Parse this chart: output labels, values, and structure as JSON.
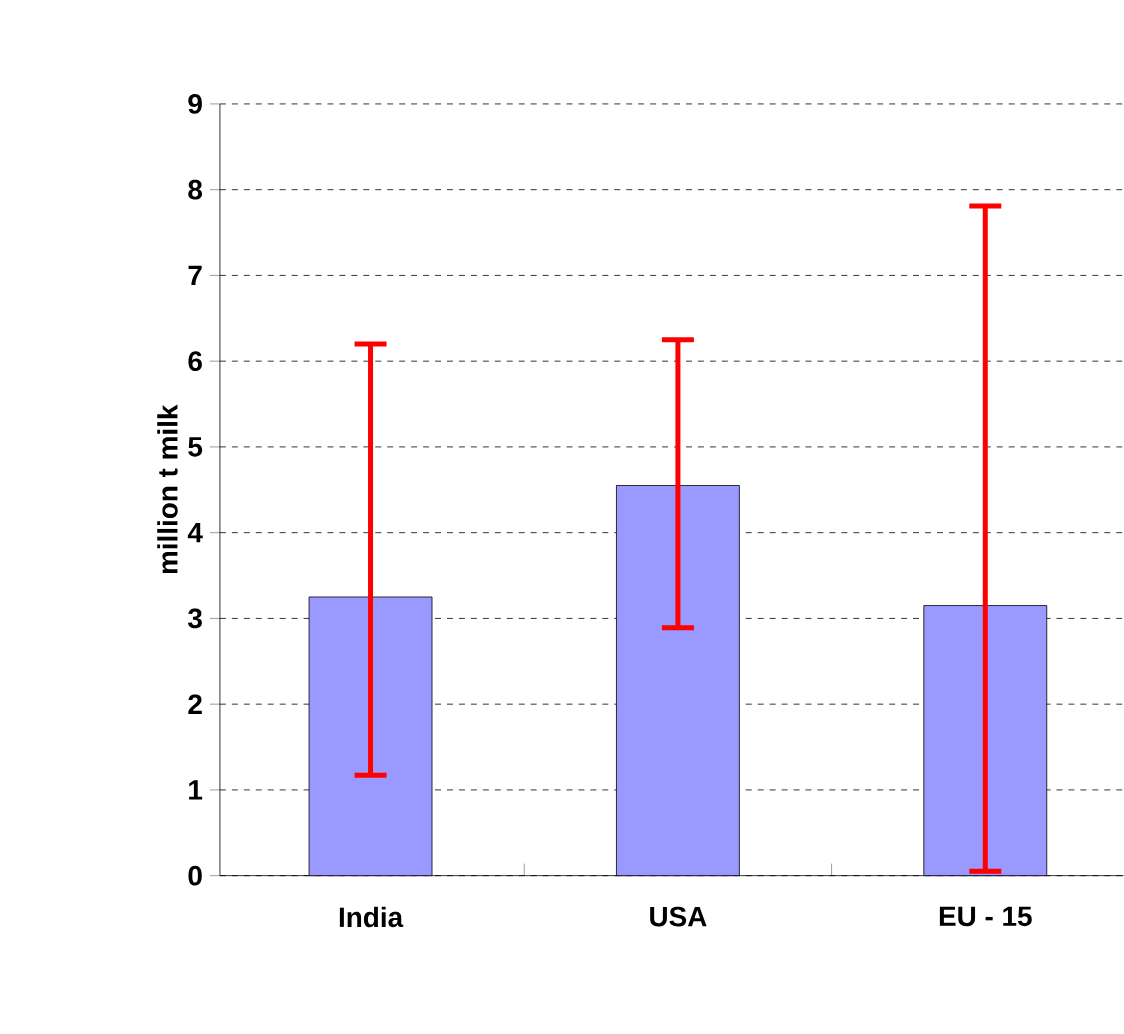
{
  "chart_data": {
    "type": "bar",
    "ylabel": "million t milk",
    "categories": [
      "India",
      "USA",
      "EU - 15"
    ],
    "values": [
      3.25,
      4.55,
      3.15
    ],
    "color": "#9999ff",
    "errors": [
      [
        1.17,
        6.2
      ],
      [
        2.89,
        6.25
      ],
      [
        0.05,
        7.81
      ]
    ],
    "ylim": [
      0,
      9
    ],
    "yticks": [
      0,
      1,
      2,
      3,
      4,
      5,
      6,
      7,
      8,
      9
    ],
    "grid": "y"
  }
}
